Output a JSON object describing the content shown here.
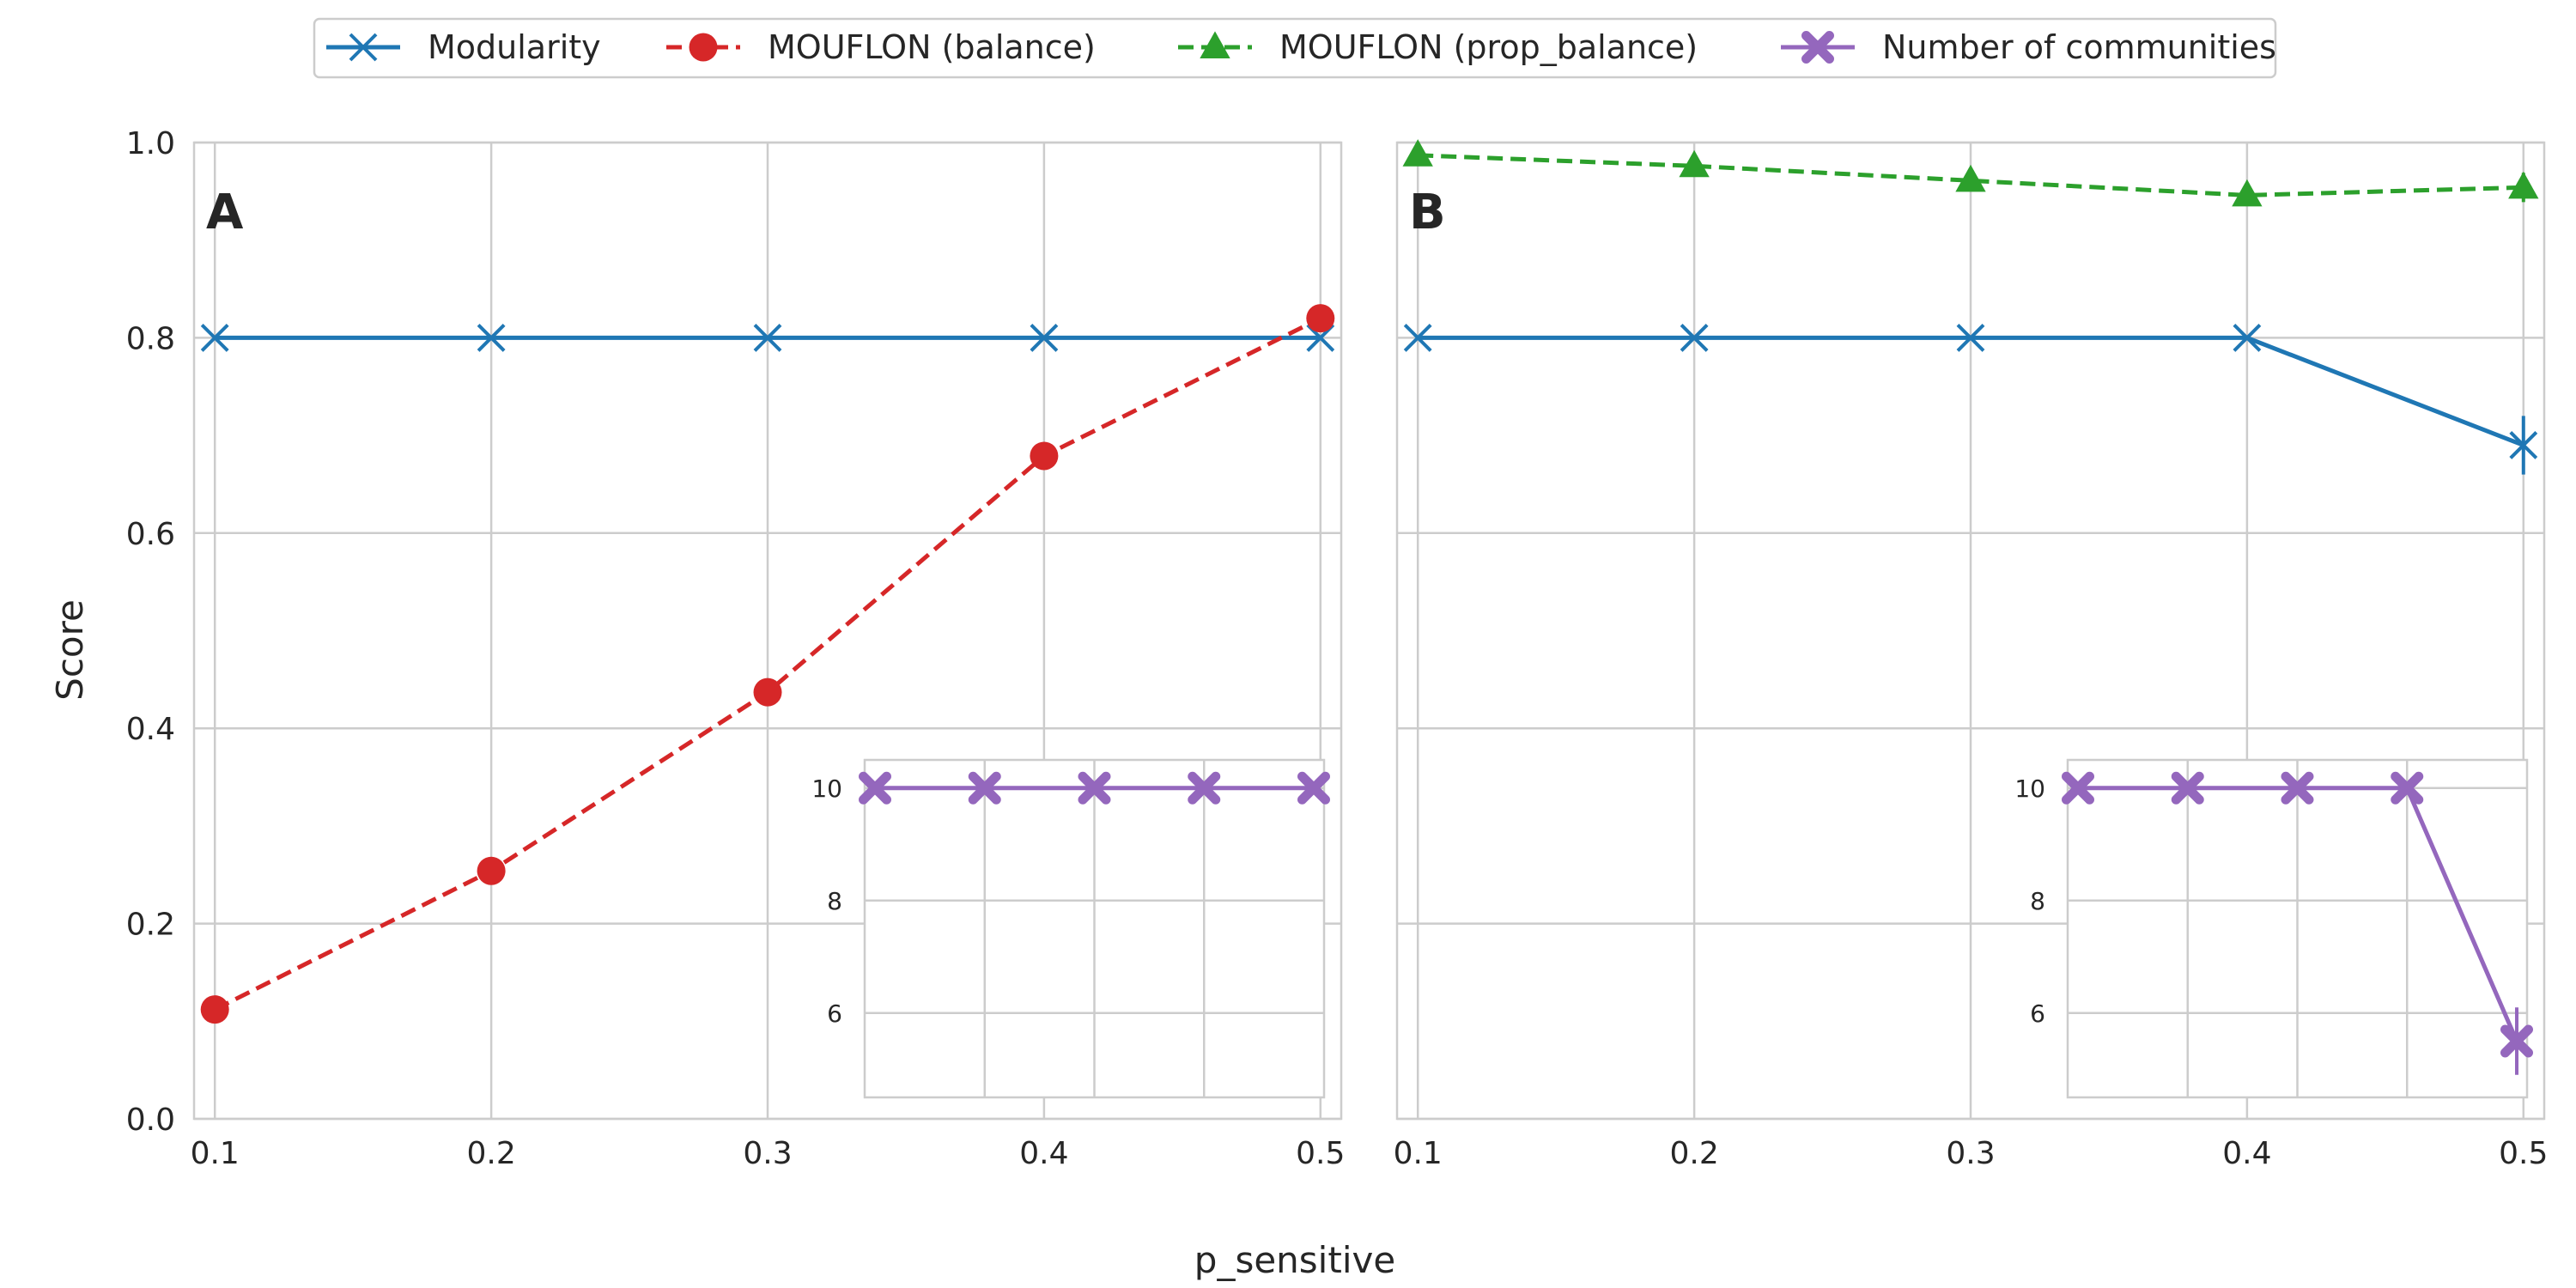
{
  "chart_data": {
    "type": "line",
    "xlabel": "p_sensitive",
    "ylabel": "Score",
    "xlim": [
      0.1,
      0.5
    ],
    "ylim": [
      0,
      1
    ],
    "xticks": [
      "0.1",
      "0.2",
      "0.3",
      "0.4",
      "0.5"
    ],
    "yticks": [
      "0.0",
      "0.2",
      "0.4",
      "0.6",
      "0.8",
      "1.0"
    ],
    "inset_ylim": [
      4.5,
      10.5
    ],
    "inset_yticks": [
      "6",
      "8",
      "10"
    ],
    "legend": {
      "placement": "top-center",
      "entries": [
        {
          "label": "Modularity",
          "color": "#1f77b4",
          "marker": "x",
          "dashed": false
        },
        {
          "label": "MOUFLON (balance)",
          "color": "#d62728",
          "marker": "circle",
          "dashed": true
        },
        {
          "label": "MOUFLON (prop_balance)",
          "color": "#2ca02c",
          "marker": "triangle",
          "dashed": true
        },
        {
          "label": "Number of communities",
          "color": "#9467bd",
          "marker": "plus-x",
          "dashed": false
        }
      ]
    },
    "panels": [
      {
        "label": "A",
        "x": [
          0.1,
          0.2,
          0.3,
          0.4,
          0.5
        ],
        "series": [
          {
            "name": "Modularity",
            "values": [
              0.8,
              0.8,
              0.8,
              0.8,
              0.8
            ],
            "color": "#1f77b4",
            "marker": "x",
            "dashed": false
          },
          {
            "name": "MOUFLON (balance)",
            "values": [
              0.112,
              0.254,
              0.437,
              0.679,
              0.82
            ],
            "color": "#d62728",
            "marker": "circle",
            "dashed": true
          }
        ],
        "inset": {
          "name": "Number of communities",
          "x": [
            0.1,
            0.2,
            0.3,
            0.4,
            0.5
          ],
          "values": [
            10,
            10,
            10,
            10,
            10
          ],
          "color": "#9467bd",
          "marker": "plus-x"
        }
      },
      {
        "label": "B",
        "x": [
          0.1,
          0.2,
          0.3,
          0.4,
          0.5
        ],
        "series": [
          {
            "name": "MOUFLON (prop_balance)",
            "values": [
              0.987,
              0.976,
              0.961,
              0.946,
              0.954
            ],
            "errors": [
              0,
              0,
              0,
              0,
              0.015
            ],
            "color": "#2ca02c",
            "marker": "triangle",
            "dashed": true
          },
          {
            "name": "Modularity",
            "values": [
              0.8,
              0.8,
              0.8,
              0.8,
              0.69
            ],
            "errors": [
              0,
              0,
              0,
              0,
              0.03
            ],
            "color": "#1f77b4",
            "marker": "x",
            "dashed": false
          }
        ],
        "inset": {
          "name": "Number of communities",
          "x": [
            0.1,
            0.2,
            0.3,
            0.4,
            0.5
          ],
          "values": [
            10,
            10,
            10,
            10,
            5.5
          ],
          "errors": [
            0,
            0,
            0,
            0,
            0.6
          ],
          "color": "#9467bd",
          "marker": "plus-x"
        }
      }
    ]
  }
}
